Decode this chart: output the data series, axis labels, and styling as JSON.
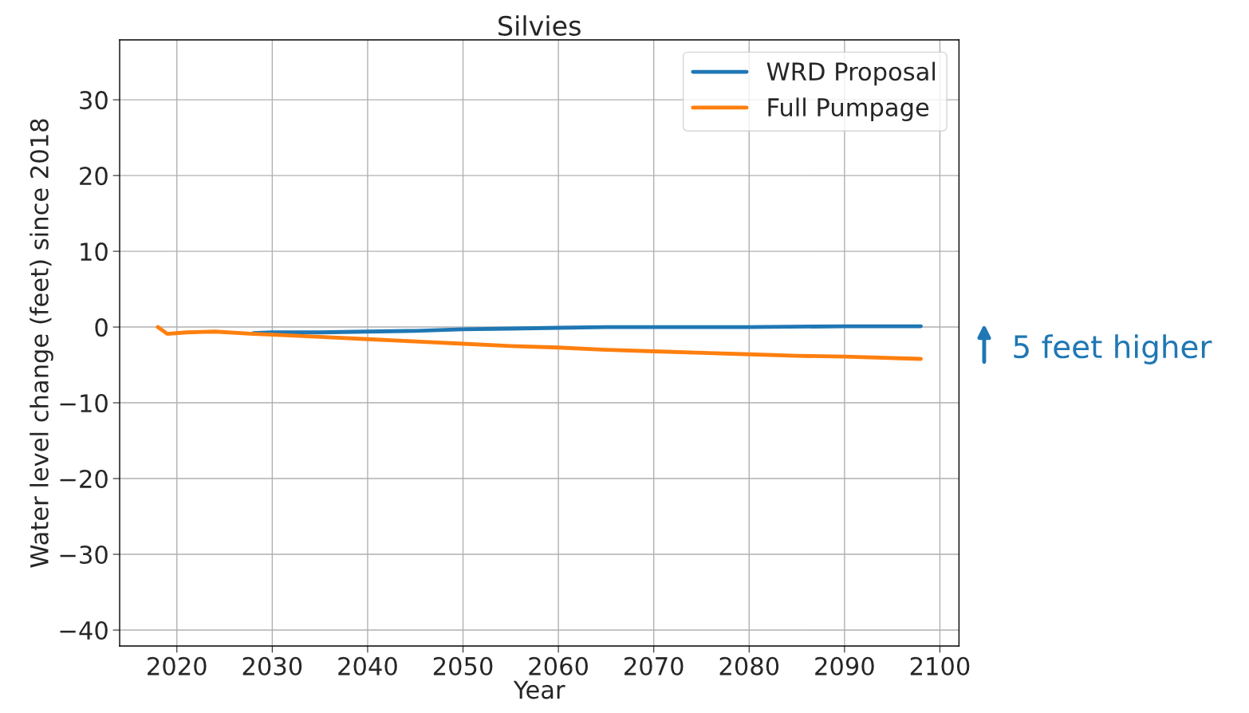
{
  "chart_data": {
    "type": "line",
    "title": "Silvies",
    "xlabel": "Year",
    "ylabel": "Water level change (feet) since 2018",
    "xlim": [
      2014,
      2102
    ],
    "xticks": [
      2020,
      2030,
      2040,
      2050,
      2060,
      2070,
      2080,
      2090,
      2100
    ],
    "ylim": [
      -42.1,
      37.9
    ],
    "yticks": [
      -40,
      -30,
      -20,
      -10,
      0,
      10,
      20,
      30
    ],
    "grid": true,
    "legend": "top right",
    "series": [
      {
        "name": "WRD Proposal",
        "color": "#1f77b4",
        "x": [
          2028,
          2030,
          2035,
          2040,
          2045,
          2050,
          2055,
          2060,
          2065,
          2070,
          2080,
          2090,
          2098
        ],
        "values": [
          -0.8,
          -0.7,
          -0.7,
          -0.6,
          -0.5,
          -0.3,
          -0.2,
          -0.1,
          0,
          0,
          0,
          0.1,
          0.1
        ]
      },
      {
        "name": "Full Pumpage",
        "color": "#ff7f0e",
        "x": [
          2018,
          2019,
          2021,
          2024,
          2028,
          2030,
          2035,
          2040,
          2045,
          2050,
          2055,
          2060,
          2065,
          2070,
          2075,
          2080,
          2085,
          2090,
          2098
        ],
        "values": [
          0,
          -0.9,
          -0.7,
          -0.6,
          -0.9,
          -1.0,
          -1.3,
          -1.6,
          -1.9,
          -2.2,
          -2.5,
          -2.7,
          -3.0,
          -3.2,
          -3.4,
          -3.6,
          -3.8,
          -3.9,
          -4.2
        ]
      }
    ],
    "annotations": [
      "5 feet higher"
    ]
  }
}
